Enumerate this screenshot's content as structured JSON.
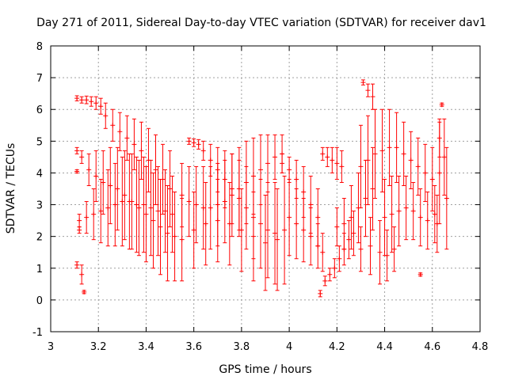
{
  "chart_data": {
    "type": "scatter",
    "title": "Day 271 of 2011, Sidereal Day-to-day VTEC variation (SDTVAR) for receiver dav1",
    "xlabel": "GPS time / hours",
    "ylabel": "SDTVAR / TECUs",
    "xlim": [
      3,
      4.8
    ],
    "ylim": [
      -1,
      8
    ],
    "xticks": [
      3,
      3.2,
      3.4,
      3.6,
      3.8,
      4,
      4.2,
      4.4,
      4.6,
      4.8
    ],
    "xtick_labels": [
      "3",
      "3.2",
      "3.4",
      "3.6",
      "3.8",
      "4",
      "4.2",
      "4.4",
      "4.6",
      "4.8"
    ],
    "yticks": [
      -1,
      0,
      1,
      2,
      3,
      4,
      5,
      6,
      7,
      8
    ],
    "ytick_labels": [
      "-1",
      "0",
      "1",
      "2",
      "3",
      "4",
      "5",
      "6",
      "7",
      "8"
    ],
    "grid": true,
    "legend": "none",
    "color": "#ff0000",
    "series": [
      {
        "name": "dav1",
        "points": [
          {
            "x": 3.11,
            "y": 6.35,
            "err": 0.08
          },
          {
            "x": 3.13,
            "y": 6.3,
            "err": 0.1
          },
          {
            "x": 3.15,
            "y": 6.3,
            "err": 0.12
          },
          {
            "x": 3.17,
            "y": 6.25,
            "err": 0.15
          },
          {
            "x": 3.19,
            "y": 6.2,
            "err": 0.2
          },
          {
            "x": 3.21,
            "y": 6.1,
            "err": 0.25
          },
          {
            "x": 3.23,
            "y": 5.8,
            "err": 0.4
          },
          {
            "x": 3.26,
            "y": 5.5,
            "err": 0.5
          },
          {
            "x": 3.29,
            "y": 5.3,
            "err": 0.6
          },
          {
            "x": 3.32,
            "y": 5.1,
            "err": 0.7
          },
          {
            "x": 3.35,
            "y": 4.9,
            "err": 0.8
          },
          {
            "x": 3.38,
            "y": 4.7,
            "err": 0.9
          },
          {
            "x": 3.41,
            "y": 4.4,
            "err": 1.0
          },
          {
            "x": 3.44,
            "y": 4.1,
            "err": 1.1
          },
          {
            "x": 3.47,
            "y": 3.8,
            "err": 1.1
          },
          {
            "x": 3.5,
            "y": 3.5,
            "err": 1.2
          },
          {
            "x": 3.11,
            "y": 4.7,
            "err": 0.1
          },
          {
            "x": 3.13,
            "y": 4.5,
            "err": 0.2
          },
          {
            "x": 3.16,
            "y": 4.1,
            "err": 0.5
          },
          {
            "x": 3.19,
            "y": 3.9,
            "err": 0.8
          },
          {
            "x": 3.22,
            "y": 3.7,
            "err": 1.0
          },
          {
            "x": 3.25,
            "y": 3.6,
            "err": 1.2
          },
          {
            "x": 3.28,
            "y": 3.5,
            "err": 1.3
          },
          {
            "x": 3.31,
            "y": 3.3,
            "err": 1.4
          },
          {
            "x": 3.34,
            "y": 3.1,
            "err": 1.5
          },
          {
            "x": 3.37,
            "y": 2.9,
            "err": 1.5
          },
          {
            "x": 3.4,
            "y": 2.7,
            "err": 1.5
          },
          {
            "x": 3.43,
            "y": 2.5,
            "err": 1.5
          },
          {
            "x": 3.46,
            "y": 2.3,
            "err": 1.5
          },
          {
            "x": 3.49,
            "y": 2.1,
            "err": 1.5
          },
          {
            "x": 3.52,
            "y": 2.0,
            "err": 1.4
          },
          {
            "x": 3.55,
            "y": 1.9,
            "err": 1.3
          },
          {
            "x": 3.12,
            "y": 2.5,
            "err": 0.2
          },
          {
            "x": 3.15,
            "y": 2.6,
            "err": 0.5
          },
          {
            "x": 3.18,
            "y": 2.7,
            "err": 0.8
          },
          {
            "x": 3.21,
            "y": 2.8,
            "err": 1.0
          },
          {
            "x": 3.24,
            "y": 2.9,
            "err": 1.2
          },
          {
            "x": 3.27,
            "y": 3.0,
            "err": 1.3
          },
          {
            "x": 3.3,
            "y": 3.1,
            "err": 1.4
          },
          {
            "x": 3.33,
            "y": 3.1,
            "err": 1.5
          },
          {
            "x": 3.36,
            "y": 3.0,
            "err": 1.5
          },
          {
            "x": 3.39,
            "y": 3.0,
            "err": 1.5
          },
          {
            "x": 3.42,
            "y": 2.9,
            "err": 1.5
          },
          {
            "x": 3.45,
            "y": 2.8,
            "err": 1.4
          },
          {
            "x": 3.48,
            "y": 2.8,
            "err": 1.3
          },
          {
            "x": 3.51,
            "y": 2.7,
            "err": 1.2
          },
          {
            "x": 3.11,
            "y": 1.1,
            "err": 0.1
          },
          {
            "x": 3.13,
            "y": 0.8,
            "err": 0.3
          },
          {
            "x": 3.14,
            "y": 0.25,
            "err": 0.05
          },
          {
            "x": 3.11,
            "y": 4.05,
            "err": 0.05
          },
          {
            "x": 3.12,
            "y": 2.2,
            "err": 0.1
          },
          {
            "x": 3.58,
            "y": 5.0,
            "err": 0.1
          },
          {
            "x": 3.6,
            "y": 4.95,
            "err": 0.12
          },
          {
            "x": 3.62,
            "y": 4.9,
            "err": 0.15
          },
          {
            "x": 3.64,
            "y": 4.7,
            "err": 0.3
          },
          {
            "x": 3.67,
            "y": 4.4,
            "err": 0.5
          },
          {
            "x": 3.7,
            "y": 4.1,
            "err": 0.7
          },
          {
            "x": 3.73,
            "y": 3.8,
            "err": 0.9
          },
          {
            "x": 3.76,
            "y": 3.5,
            "err": 1.1
          },
          {
            "x": 3.79,
            "y": 3.2,
            "err": 1.2
          },
          {
            "x": 3.82,
            "y": 2.9,
            "err": 1.3
          },
          {
            "x": 3.85,
            "y": 2.6,
            "err": 1.3
          },
          {
            "x": 3.88,
            "y": 2.4,
            "err": 1.4
          },
          {
            "x": 3.91,
            "y": 2.2,
            "err": 1.5
          },
          {
            "x": 3.94,
            "y": 2.1,
            "err": 1.6
          },
          {
            "x": 3.55,
            "y": 3.3,
            "err": 1.0
          },
          {
            "x": 3.58,
            "y": 3.1,
            "err": 1.1
          },
          {
            "x": 3.61,
            "y": 3.0,
            "err": 1.2
          },
          {
            "x": 3.64,
            "y": 2.9,
            "err": 1.3
          },
          {
            "x": 3.67,
            "y": 2.9,
            "err": 1.3
          },
          {
            "x": 3.7,
            "y": 3.0,
            "err": 1.3
          },
          {
            "x": 3.73,
            "y": 3.1,
            "err": 1.3
          },
          {
            "x": 3.76,
            "y": 3.3,
            "err": 1.3
          },
          {
            "x": 3.79,
            "y": 3.5,
            "err": 1.3
          },
          {
            "x": 3.82,
            "y": 3.7,
            "err": 1.3
          },
          {
            "x": 3.85,
            "y": 3.9,
            "err": 1.2
          },
          {
            "x": 3.88,
            "y": 4.1,
            "err": 1.1
          },
          {
            "x": 3.91,
            "y": 4.3,
            "err": 0.9
          },
          {
            "x": 3.94,
            "y": 4.5,
            "err": 0.7
          },
          {
            "x": 3.97,
            "y": 4.6,
            "err": 0.6
          },
          {
            "x": 3.6,
            "y": 2.2,
            "err": 1.2
          },
          {
            "x": 3.65,
            "y": 2.4,
            "err": 1.3
          },
          {
            "x": 3.7,
            "y": 2.5,
            "err": 1.3
          },
          {
            "x": 3.75,
            "y": 2.4,
            "err": 1.3
          },
          {
            "x": 3.8,
            "y": 2.2,
            "err": 1.3
          },
          {
            "x": 3.85,
            "y": 2.0,
            "err": 1.4
          },
          {
            "x": 3.9,
            "y": 1.8,
            "err": 1.5
          },
          {
            "x": 3.95,
            "y": 1.9,
            "err": 1.6
          },
          {
            "x": 3.98,
            "y": 2.2,
            "err": 1.7
          },
          {
            "x": 3.97,
            "y": 4.3,
            "err": 0.3
          },
          {
            "x": 4.0,
            "y": 4.1,
            "err": 0.4
          },
          {
            "x": 4.03,
            "y": 3.8,
            "err": 0.6
          },
          {
            "x": 4.06,
            "y": 3.4,
            "err": 0.8
          },
          {
            "x": 4.09,
            "y": 3.0,
            "err": 0.9
          },
          {
            "x": 4.12,
            "y": 2.6,
            "err": 0.9
          },
          {
            "x": 4.0,
            "y": 2.6,
            "err": 1.2
          },
          {
            "x": 4.03,
            "y": 2.4,
            "err": 1.1
          },
          {
            "x": 4.06,
            "y": 2.2,
            "err": 1.0
          },
          {
            "x": 4.09,
            "y": 2.0,
            "err": 0.9
          },
          {
            "x": 4.12,
            "y": 1.7,
            "err": 0.7
          },
          {
            "x": 4.14,
            "y": 1.5,
            "err": 0.6
          },
          {
            "x": 4.14,
            "y": 4.6,
            "err": 0.2
          },
          {
            "x": 4.16,
            "y": 4.5,
            "err": 0.3
          },
          {
            "x": 4.18,
            "y": 4.4,
            "err": 0.4
          },
          {
            "x": 4.2,
            "y": 4.3,
            "err": 0.5
          },
          {
            "x": 4.22,
            "y": 4.2,
            "err": 0.5
          },
          {
            "x": 4.13,
            "y": 0.2,
            "err": 0.1
          },
          {
            "x": 4.15,
            "y": 0.6,
            "err": 0.15
          },
          {
            "x": 4.17,
            "y": 0.8,
            "err": 0.2
          },
          {
            "x": 4.19,
            "y": 1.0,
            "err": 0.3
          },
          {
            "x": 4.21,
            "y": 1.3,
            "err": 0.4
          },
          {
            "x": 4.23,
            "y": 1.6,
            "err": 0.5
          },
          {
            "x": 4.25,
            "y": 1.9,
            "err": 0.6
          },
          {
            "x": 4.27,
            "y": 2.1,
            "err": 0.7
          },
          {
            "x": 4.2,
            "y": 2.3,
            "err": 0.6
          },
          {
            "x": 4.23,
            "y": 2.4,
            "err": 0.8
          },
          {
            "x": 4.26,
            "y": 2.6,
            "err": 1.0
          },
          {
            "x": 4.29,
            "y": 2.9,
            "err": 1.1
          },
          {
            "x": 4.32,
            "y": 3.2,
            "err": 1.2
          },
          {
            "x": 4.35,
            "y": 3.5,
            "err": 1.3
          },
          {
            "x": 4.31,
            "y": 6.85,
            "err": 0.08
          },
          {
            "x": 4.33,
            "y": 6.6,
            "err": 0.2
          },
          {
            "x": 4.35,
            "y": 6.4,
            "err": 0.4
          },
          {
            "x": 4.3,
            "y": 4.2,
            "err": 1.3
          },
          {
            "x": 4.33,
            "y": 4.4,
            "err": 1.4
          },
          {
            "x": 4.36,
            "y": 4.6,
            "err": 1.4
          },
          {
            "x": 4.39,
            "y": 4.7,
            "err": 1.3
          },
          {
            "x": 4.42,
            "y": 4.8,
            "err": 1.2
          },
          {
            "x": 4.45,
            "y": 4.8,
            "err": 1.1
          },
          {
            "x": 4.48,
            "y": 4.6,
            "err": 1.0
          },
          {
            "x": 4.51,
            "y": 4.4,
            "err": 0.9
          },
          {
            "x": 4.54,
            "y": 4.2,
            "err": 0.9
          },
          {
            "x": 4.57,
            "y": 4.0,
            "err": 0.9
          },
          {
            "x": 4.6,
            "y": 3.8,
            "err": 1.0
          },
          {
            "x": 4.3,
            "y": 1.6,
            "err": 0.7
          },
          {
            "x": 4.34,
            "y": 1.7,
            "err": 0.9
          },
          {
            "x": 4.38,
            "y": 1.5,
            "err": 1.0
          },
          {
            "x": 4.41,
            "y": 1.4,
            "err": 0.8
          },
          {
            "x": 4.44,
            "y": 1.6,
            "err": 0.7
          },
          {
            "x": 4.4,
            "y": 2.6,
            "err": 1.2
          },
          {
            "x": 4.43,
            "y": 2.7,
            "err": 1.2
          },
          {
            "x": 4.46,
            "y": 2.8,
            "err": 1.1
          },
          {
            "x": 4.49,
            "y": 2.9,
            "err": 1.0
          },
          {
            "x": 4.52,
            "y": 2.8,
            "err": 0.9
          },
          {
            "x": 4.55,
            "y": 2.6,
            "err": 0.9
          },
          {
            "x": 4.58,
            "y": 2.5,
            "err": 0.9
          },
          {
            "x": 4.61,
            "y": 2.7,
            "err": 0.9
          },
          {
            "x": 4.55,
            "y": 0.8,
            "err": 0.05
          },
          {
            "x": 4.64,
            "y": 6.15,
            "err": 0.05
          },
          {
            "x": 4.63,
            "y": 4.0,
            "err": 1.6
          },
          {
            "x": 4.65,
            "y": 4.5,
            "err": 1.2
          },
          {
            "x": 4.66,
            "y": 3.2,
            "err": 1.6
          },
          {
            "x": 4.62,
            "y": 2.4,
            "err": 0.9
          },
          {
            "x": 4.63,
            "y": 5.1,
            "err": 0.6
          }
        ]
      }
    ]
  }
}
